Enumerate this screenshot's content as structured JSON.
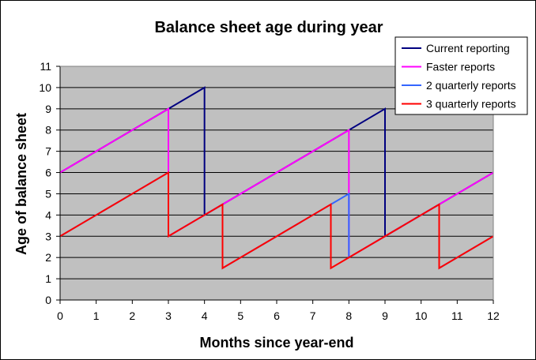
{
  "chart_data": {
    "type": "line",
    "title": "Balance sheet age during year",
    "xlabel": "Months since year-end",
    "ylabel": "Age of balance sheet",
    "xlim": [
      0,
      12
    ],
    "ylim": [
      0,
      11
    ],
    "xticks": [
      0,
      1,
      2,
      3,
      4,
      5,
      6,
      7,
      8,
      9,
      10,
      11,
      12
    ],
    "yticks": [
      0,
      1,
      2,
      3,
      4,
      5,
      6,
      7,
      8,
      9,
      10,
      11
    ],
    "grid": "horizontal",
    "legend": "top-right",
    "plot_background": "#c0c0c0",
    "series": [
      {
        "name": "Current reporting",
        "color": "#000080",
        "x": [
          0,
          4,
          4,
          9,
          9,
          12
        ],
        "y": [
          6,
          10,
          4,
          9,
          3,
          6
        ]
      },
      {
        "name": "Faster reports",
        "color": "#ff00ff",
        "x": [
          0,
          3,
          3,
          8,
          8,
          12
        ],
        "y": [
          6,
          9,
          3,
          8,
          2,
          6
        ]
      },
      {
        "name": "2 quarterly reports",
        "color": "#3366ff",
        "x": [
          0,
          3,
          3,
          4.5,
          4.5,
          8,
          8,
          10.5,
          10.5,
          12
        ],
        "y": [
          3,
          6,
          3,
          4.5,
          1.5,
          5,
          2,
          4.5,
          1.5,
          3
        ]
      },
      {
        "name": "3 quarterly reports",
        "color": "#ff0000",
        "x": [
          0,
          3,
          3,
          4.5,
          4.5,
          7.5,
          7.5,
          10.5,
          10.5,
          12
        ],
        "y": [
          3,
          6,
          3,
          4.5,
          1.5,
          4.5,
          1.5,
          4.5,
          1.5,
          3
        ]
      }
    ]
  }
}
